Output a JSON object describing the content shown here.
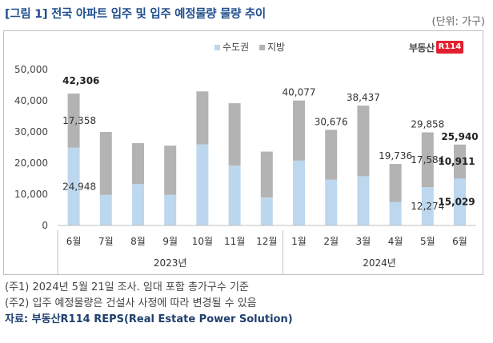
{
  "title": "[그림 1] 전국 아파트 입주 및 입주 예정물량 물량 추이",
  "unit_label": "(단위: 가구)",
  "brand": {
    "text": "부동산",
    "box": "R114",
    "color": "#e02030"
  },
  "colors": {
    "capital": "#bdd7ee",
    "local": "#b3b3b3",
    "title": "#1f4e8c"
  },
  "chart_data": {
    "type": "bar",
    "stacked": true,
    "categories": [
      "6월",
      "7월",
      "8월",
      "9월",
      "10월",
      "11월",
      "12월",
      "1월",
      "2월",
      "3월",
      "4월",
      "5월",
      "6월"
    ],
    "groups": [
      {
        "label": "2023년",
        "start": 0,
        "end": 6
      },
      {
        "label": "2024년",
        "start": 7,
        "end": 12
      }
    ],
    "series": [
      {
        "name": "수도권",
        "values": [
          24948,
          9800,
          13300,
          9800,
          26000,
          19200,
          9000,
          20800,
          14700,
          15800,
          7500,
          12274,
          15029
        ]
      },
      {
        "name": "지방",
        "values": [
          17358,
          20200,
          13100,
          15800,
          17000,
          20000,
          14700,
          19277,
          15976,
          22637,
          12236,
          17584,
          10911
        ]
      }
    ],
    "totals_shown": [
      42306,
      null,
      null,
      null,
      null,
      null,
      null,
      40077,
      30676,
      38437,
      19736,
      29858,
      25940
    ],
    "labels": [
      {
        "index": 0,
        "text": "42,306",
        "kind": "total",
        "bold": true
      },
      {
        "index": 0,
        "text": "17,358",
        "kind": "local",
        "bold": false
      },
      {
        "index": 0,
        "text": "24,948",
        "kind": "capital",
        "bold": false
      },
      {
        "index": 7,
        "text": "40,077",
        "kind": "total",
        "bold": false
      },
      {
        "index": 8,
        "text": "30,676",
        "kind": "total",
        "bold": false
      },
      {
        "index": 9,
        "text": "38,437",
        "kind": "total",
        "bold": false
      },
      {
        "index": 10,
        "text": "19,736",
        "kind": "total",
        "bold": false
      },
      {
        "index": 11,
        "text": "29,858",
        "kind": "total",
        "bold": false
      },
      {
        "index": 11,
        "text": "17,584",
        "kind": "local",
        "bold": false
      },
      {
        "index": 11,
        "text": "12,274",
        "kind": "capital",
        "bold": false
      },
      {
        "index": 12,
        "text": "25,940",
        "kind": "total",
        "bold": true
      },
      {
        "index": 12,
        "text": "10,911",
        "kind": "local",
        "bold": true
      },
      {
        "index": 12,
        "text": "15,029",
        "kind": "capital",
        "bold": true
      }
    ],
    "y_ticks": [
      "0",
      "10,000",
      "20,000",
      "30,000",
      "40,000",
      "50,000"
    ],
    "ylim": [
      0,
      50000
    ],
    "legend": [
      "수도권",
      "지방"
    ],
    "legend_position": "top-center"
  },
  "notes": [
    "(주1) 2024년 5월 21일 조사. 임대 포함 총가구수 기준",
    "(주2) 입주 예정물량은 건설사 사정에 따라 변경될 수 있음"
  ],
  "source": "자료: 부동산R114 REPS(Real Estate Power Solution)"
}
